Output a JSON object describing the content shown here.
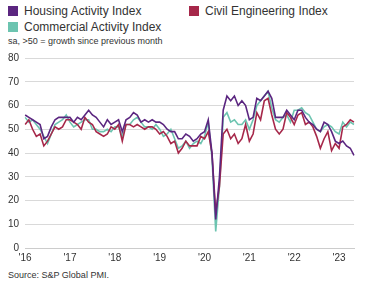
{
  "chart_data": {
    "type": "line",
    "subtitle": "sa, >50 = growth since previous month",
    "source": "Source: S&P Global PMI.",
    "categories": [
      "'16",
      null,
      null,
      null,
      null,
      null,
      null,
      null,
      null,
      null,
      null,
      null,
      "'17",
      null,
      null,
      null,
      null,
      null,
      null,
      null,
      null,
      null,
      null,
      null,
      "'18",
      null,
      null,
      null,
      null,
      null,
      null,
      null,
      null,
      null,
      null,
      null,
      "'19",
      null,
      null,
      null,
      null,
      null,
      null,
      null,
      null,
      null,
      null,
      null,
      "'20",
      null,
      null,
      null,
      null,
      null,
      null,
      null,
      null,
      null,
      null,
      null,
      "'21",
      null,
      null,
      null,
      null,
      null,
      null,
      null,
      null,
      null,
      null,
      null,
      "'22",
      null,
      null,
      null,
      null,
      null,
      null,
      null,
      null,
      null,
      null,
      null,
      "'23",
      null,
      null,
      null,
      null
    ],
    "series": [
      {
        "name": "Housing Activity Index",
        "color": "#5b2680",
        "values": [
          56,
          55,
          54,
          53,
          52,
          46,
          47,
          51,
          54,
          55,
          55,
          55,
          55,
          53,
          55,
          54,
          56,
          58,
          56,
          55,
          53,
          51,
          54,
          52,
          53,
          54,
          49,
          54,
          55,
          57,
          56,
          53,
          54,
          53,
          54,
          53,
          53,
          52,
          50,
          49,
          49,
          46,
          46,
          48,
          47,
          45,
          46,
          48,
          49,
          54,
          40,
          12,
          30,
          58,
          64,
          62,
          64,
          60,
          62,
          60,
          54,
          55,
          63,
          62,
          64,
          66,
          63,
          55,
          55,
          55,
          58,
          56,
          54,
          58,
          58,
          55,
          53,
          52,
          50,
          49,
          53,
          52,
          49,
          45,
          44,
          45,
          43,
          42,
          39
        ]
      },
      {
        "name": "Civil Engineering Index",
        "color": "#a6284a",
        "values": [
          52,
          54,
          50,
          47,
          48,
          43,
          45,
          48,
          51,
          50,
          51,
          54,
          54,
          53,
          52,
          50,
          55,
          53,
          52,
          49,
          48,
          47,
          48,
          51,
          50,
          52,
          45,
          52,
          52,
          51,
          52,
          51,
          50,
          51,
          51,
          50,
          48,
          49,
          47,
          44,
          45,
          40,
          42,
          45,
          43,
          43,
          43,
          47,
          46,
          49,
          40,
          15,
          26,
          48,
          50,
          46,
          48,
          44,
          46,
          52,
          45,
          48,
          57,
          54,
          62,
          63,
          56,
          50,
          48,
          50,
          57,
          55,
          52,
          56,
          57,
          52,
          53,
          51,
          47,
          42,
          46,
          49,
          41,
          44,
          42,
          51,
          52,
          54,
          53
        ]
      },
      {
        "name": "Commercial Activity Index",
        "color": "#6cc4b0",
        "values": [
          55,
          53,
          54,
          52,
          50,
          47,
          44,
          48,
          52,
          53,
          54,
          56,
          53,
          51,
          52,
          53,
          54,
          54,
          50,
          50,
          49,
          49,
          50,
          49,
          51,
          51,
          47,
          52,
          52,
          54,
          55,
          53,
          51,
          51,
          50,
          52,
          50,
          47,
          48,
          50,
          46,
          42,
          43,
          45,
          42,
          44,
          45,
          44,
          47,
          53,
          38,
          7,
          26,
          55,
          57,
          53,
          54,
          52,
          52,
          54,
          50,
          54,
          60,
          62,
          64,
          66,
          59,
          54,
          53,
          55,
          56,
          53,
          58,
          58,
          59,
          57,
          56,
          53,
          50,
          49,
          51,
          52,
          51,
          49,
          48,
          53,
          51,
          53,
          52
        ]
      }
    ],
    "ylim": [
      0,
      80
    ],
    "yticks": [
      0,
      10,
      20,
      30,
      40,
      50,
      60,
      70,
      80
    ],
    "grid": true,
    "legend": "top"
  }
}
